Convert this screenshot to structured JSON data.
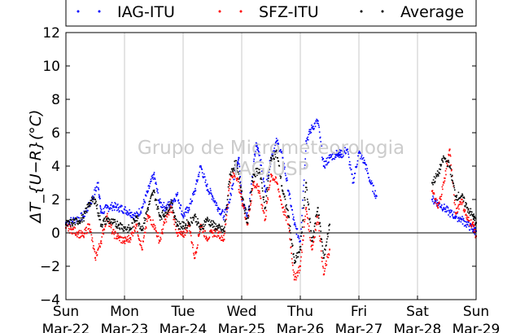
{
  "chart_data": {
    "type": "scatter",
    "xlabel": "",
    "ylabel": "ΔT_{U−R}(°C)",
    "ylim": [
      -4,
      12
    ],
    "yticks": [
      -4,
      -2,
      0,
      2,
      4,
      6,
      8,
      10,
      12
    ],
    "xlim": [
      0,
      7
    ],
    "xticks": [
      {
        "x": 0,
        "day": "Sun",
        "date": "Mar-22"
      },
      {
        "x": 1,
        "day": "Mon",
        "date": "Mar-23"
      },
      {
        "x": 2,
        "day": "Tue",
        "date": "Mar-24"
      },
      {
        "x": 3,
        "day": "Wed",
        "date": "Mar-25"
      },
      {
        "x": 4,
        "day": "Thu",
        "date": "Mar-26"
      },
      {
        "x": 5,
        "day": "Fri",
        "date": "Mar-27"
      },
      {
        "x": 6,
        "day": "Sat",
        "date": "Mar-28"
      },
      {
        "x": 7,
        "day": "Sun",
        "date": "Mar-29"
      }
    ],
    "grid": "vertical",
    "zero_line": 0,
    "legend_position": "top",
    "watermark": [
      "Grupo de Micrometeorologia",
      "IAG/USP"
    ],
    "series": [
      {
        "name": "IAG-ITU",
        "color": "#0000ff",
        "x": [
          0.0,
          0.15,
          0.3,
          0.45,
          0.55,
          0.6,
          0.7,
          0.8,
          0.9,
          1.0,
          1.1,
          1.2,
          1.3,
          1.4,
          1.5,
          1.6,
          1.7,
          1.8,
          1.9,
          2.0,
          2.1,
          2.2,
          2.3,
          2.4,
          2.5,
          2.6,
          2.7,
          2.8,
          2.9,
          2.95,
          3.0,
          3.1,
          3.2,
          3.25,
          3.3,
          3.4,
          3.5,
          3.6,
          3.7,
          3.8,
          3.9,
          4.0,
          4.1,
          4.2,
          4.3,
          4.4,
          4.5,
          4.6,
          4.65,
          4.7,
          4.8,
          4.9,
          5.0,
          5.1,
          5.2,
          5.3,
          6.25,
          6.35,
          6.45,
          6.55,
          6.65,
          6.75,
          6.85,
          6.95,
          7.0
        ],
        "y": [
          0.6,
          0.8,
          1.0,
          2.0,
          3.0,
          1.2,
          1.5,
          1.6,
          1.5,
          1.4,
          1.2,
          1.0,
          1.5,
          2.5,
          3.5,
          1.8,
          1.5,
          1.8,
          2.3,
          1.0,
          1.5,
          2.5,
          4.0,
          2.8,
          2.2,
          1.5,
          1.0,
          2.0,
          4.0,
          4.5,
          2.0,
          1.0,
          4.0,
          5.3,
          4.8,
          2.5,
          4.5,
          5.5,
          4.5,
          2.5,
          0.5,
          -0.5,
          5.5,
          6.3,
          6.7,
          4.0,
          4.5,
          4.7,
          4.8,
          4.7,
          5.0,
          3.0,
          4.8,
          4.2,
          3.0,
          2.2,
          2.0,
          1.8,
          1.5,
          1.2,
          1.0,
          0.8,
          0.5,
          0.2,
          0.1
        ]
      },
      {
        "name": "SFZ-ITU",
        "color": "#ff0000",
        "x": [
          0.0,
          0.1,
          0.2,
          0.3,
          0.4,
          0.5,
          0.6,
          0.7,
          0.8,
          0.9,
          1.0,
          1.1,
          1.2,
          1.3,
          1.4,
          1.5,
          1.6,
          1.7,
          1.8,
          1.9,
          2.0,
          2.1,
          2.2,
          2.3,
          2.4,
          2.5,
          2.6,
          2.7,
          2.8,
          2.9,
          3.0,
          3.1,
          3.2,
          3.3,
          3.4,
          3.5,
          3.6,
          3.7,
          3.8,
          3.9,
          4.0,
          4.1,
          4.2,
          4.3,
          4.4,
          4.5,
          6.25,
          6.35,
          6.45,
          6.55,
          6.65,
          6.75,
          6.85,
          6.95,
          7.0
        ],
        "y": [
          0.3,
          0.2,
          0.0,
          -0.2,
          0.5,
          -1.5,
          -0.5,
          1.0,
          0.0,
          -0.3,
          -0.5,
          -0.3,
          0.5,
          -1.0,
          1.0,
          0.5,
          -0.5,
          0.8,
          1.5,
          0.0,
          -0.2,
          0.5,
          -1.5,
          0.5,
          -0.3,
          0.0,
          0.0,
          -0.4,
          3.2,
          3.6,
          2.0,
          0.5,
          3.0,
          2.5,
          0.8,
          3.5,
          3.0,
          1.5,
          0.5,
          -2.8,
          -2.0,
          1.5,
          -1.0,
          1.0,
          -2.5,
          -1.0,
          2.5,
          1.5,
          3.0,
          5.0,
          1.2,
          2.0,
          0.8,
          0.5,
          -0.2
        ]
      },
      {
        "name": "Average",
        "color": "#000000",
        "x": [
          0.0,
          0.1,
          0.2,
          0.3,
          0.4,
          0.5,
          0.6,
          0.7,
          0.8,
          0.9,
          1.0,
          1.1,
          1.2,
          1.3,
          1.4,
          1.5,
          1.6,
          1.7,
          1.8,
          1.9,
          2.0,
          2.1,
          2.2,
          2.3,
          2.4,
          2.5,
          2.6,
          2.7,
          2.8,
          2.9,
          3.0,
          3.1,
          3.2,
          3.3,
          3.4,
          3.5,
          3.6,
          3.7,
          3.8,
          3.9,
          4.0,
          4.1,
          4.2,
          4.3,
          4.4,
          4.5,
          6.25,
          6.35,
          6.45,
          6.55,
          6.65,
          6.75,
          6.85,
          6.95,
          7.0
        ],
        "y": [
          0.5,
          0.6,
          0.7,
          0.9,
          1.8,
          2.0,
          0.5,
          0.8,
          0.6,
          0.5,
          0.3,
          0.2,
          1.0,
          0.2,
          1.5,
          2.5,
          1.0,
          1.2,
          1.8,
          0.5,
          0.4,
          0.6,
          1.0,
          0.2,
          0.8,
          0.5,
          0.3,
          0.1,
          3.5,
          4.2,
          2.5,
          0.6,
          3.5,
          3.8,
          1.5,
          4.5,
          4.8,
          2.5,
          1.0,
          -1.8,
          -1.0,
          3.0,
          -0.5,
          1.5,
          -1.5,
          0.5,
          3.0,
          3.5,
          4.5,
          4.0,
          2.2,
          2.2,
          1.5,
          1.0,
          0.6
        ]
      }
    ]
  }
}
